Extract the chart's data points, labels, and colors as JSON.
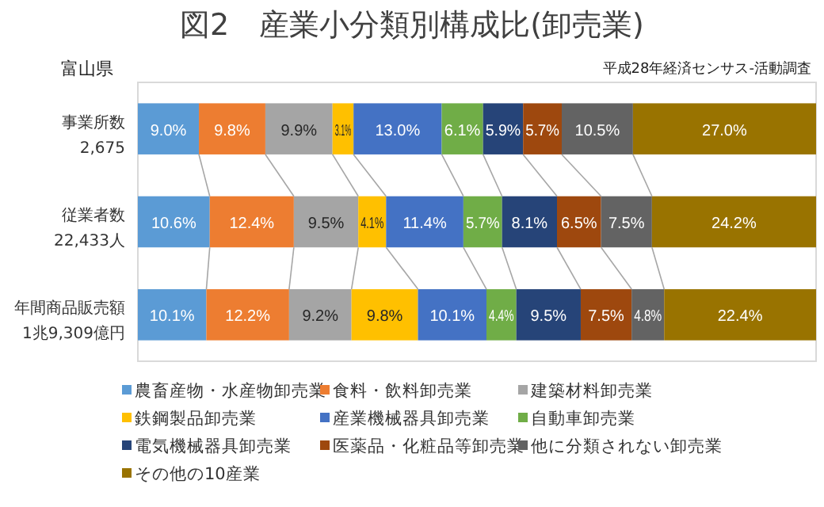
{
  "chart_data": {
    "type": "bar",
    "orientation": "horizontal",
    "stacked": true,
    "title": "図2　産業小分類別構成比(卸売業)",
    "annotations": [
      "富山県",
      "平成28年経済センサス‐活動調査"
    ],
    "categories": [
      "事業所数\n2,675",
      "従業者数\n22,433人",
      "年間商品販売額\n1兆9,309億円"
    ],
    "xlim": [
      0,
      100
    ],
    "tick_labels": "y",
    "legend": "bottom",
    "series": [
      {
        "name": "農畜産物・水産物卸売業",
        "color": "#5b9bd5",
        "values": [
          9.0,
          10.6,
          10.1
        ],
        "value_labels": [
          "9.0%",
          "10.6%",
          "10.1%"
        ]
      },
      {
        "name": "食料・飲料卸売業",
        "color": "#ed7d31",
        "values": [
          9.8,
          12.4,
          12.2
        ],
        "value_labels": [
          "9.8%",
          "12.4%",
          "12.2%"
        ]
      },
      {
        "name": "建築材料卸売業",
        "color": "#a5a5a5",
        "values": [
          9.9,
          9.5,
          9.2
        ],
        "value_labels": [
          "9.9%",
          "9.5%",
          "9.2%"
        ]
      },
      {
        "name": "鉄鋼製品卸売業",
        "color": "#ffc000",
        "values": [
          3.1,
          4.1,
          9.8
        ],
        "value_labels": [
          "3.1%",
          "4.1%",
          "9.8%"
        ]
      },
      {
        "name": "産業機械器具卸売業",
        "color": "#4472c4",
        "values": [
          13.0,
          11.4,
          10.1
        ],
        "value_labels": [
          "13.0%",
          "11.4%",
          "10.1%"
        ]
      },
      {
        "name": "自動車卸売業",
        "color": "#70ad47",
        "values": [
          6.1,
          5.7,
          4.4
        ],
        "value_labels": [
          "6.1%",
          "5.7%",
          "4.4%"
        ]
      },
      {
        "name": "電気機械器具卸売業",
        "color": "#264478",
        "values": [
          5.9,
          8.1,
          9.5
        ],
        "value_labels": [
          "5.9%",
          "8.1%",
          "9.5%"
        ]
      },
      {
        "name": "医薬品・化粧品等卸売業",
        "color": "#9e480e",
        "values": [
          5.7,
          6.5,
          7.5
        ],
        "value_labels": [
          "5.7%",
          "6.5%",
          "7.5%"
        ]
      },
      {
        "name": "他に分類されない卸売業",
        "color": "#636363",
        "values": [
          10.5,
          7.5,
          4.8
        ],
        "value_labels": [
          "10.5%",
          "7.5%",
          "4.8%"
        ]
      },
      {
        "name": "その他の10産業",
        "color": "#997300",
        "values": [
          27.0,
          24.2,
          22.4
        ],
        "value_labels": [
          "27.0%",
          "24.2%",
          "22.4%"
        ]
      }
    ]
  }
}
